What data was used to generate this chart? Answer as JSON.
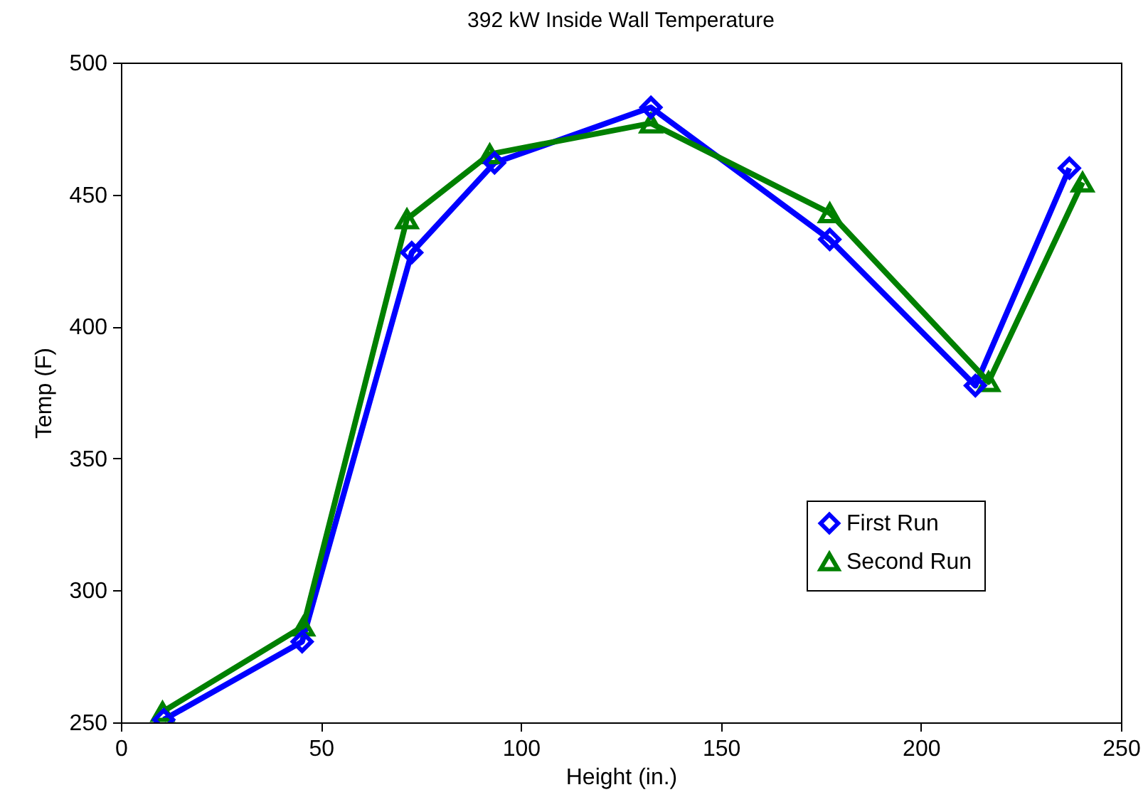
{
  "chart_data": {
    "type": "line",
    "title": "392 kW Inside Wall Temperature",
    "xlabel": "Height (in.)",
    "ylabel": "Temp (F)",
    "xlim": [
      0,
      250
    ],
    "xticks": [
      0,
      50,
      100,
      150,
      200,
      250
    ],
    "ylim": [
      250,
      500
    ],
    "yticks": [
      250,
      300,
      350,
      400,
      450,
      500
    ],
    "grid": false,
    "legend": "bottom right",
    "line_style": "solid",
    "series": [
      {
        "name": "First Run",
        "color": "#0000ff",
        "marker": "diamond",
        "x": [
          10.7,
          45.3,
          72.7,
          93.4,
          132.5,
          177.2,
          213.6,
          237.1
        ],
        "values": [
          251,
          280.6,
          428,
          462,
          483,
          433,
          377.6,
          460
        ]
      },
      {
        "name": "Second Run",
        "color": "#008000",
        "marker": "triangle",
        "x": [
          10.4,
          45.6,
          71.5,
          92.2,
          132.5,
          177.2,
          216.9,
          240.4
        ],
        "values": [
          254,
          286.4,
          440.7,
          465.3,
          477,
          443,
          379,
          454.6
        ]
      }
    ]
  }
}
